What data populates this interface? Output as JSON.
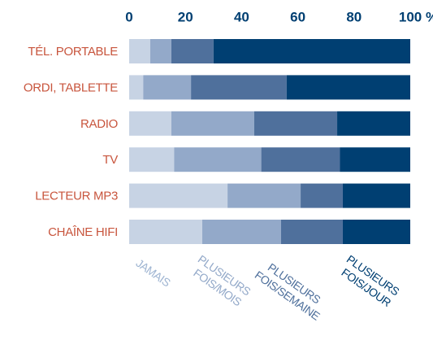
{
  "chart_data": {
    "type": "stacked-bar-horizontal",
    "categories": [
      "TÉL. PORTABLE",
      "ORDI, TABLETTE",
      "RADIO",
      "TV",
      "LECTEUR MP3",
      "CHAÎNE HIFI"
    ],
    "series": [
      {
        "name": "JAMAIS",
        "color": "#c7d3e4",
        "values": [
          7.5,
          5,
          15,
          16,
          35,
          26
        ]
      },
      {
        "name": "PLUSIEURS FOIS/MOIS",
        "color": "#93a9c9",
        "values": [
          7.5,
          17,
          29.5,
          31,
          26,
          28
        ]
      },
      {
        "name": "PLUSIEURS FOIS/SEMAINE",
        "color": "#4f709c",
        "values": [
          15,
          34,
          29.5,
          28,
          15,
          22
        ]
      },
      {
        "name": "PLUSIEURS FOIS/JOUR",
        "color": "#003f72",
        "values": [
          70,
          44,
          26,
          25,
          24,
          24
        ]
      }
    ],
    "xlim": [
      0,
      100
    ],
    "xticks": [
      0,
      20,
      40,
      60,
      80,
      {
        "value": 100,
        "label": "100 %"
      }
    ]
  }
}
